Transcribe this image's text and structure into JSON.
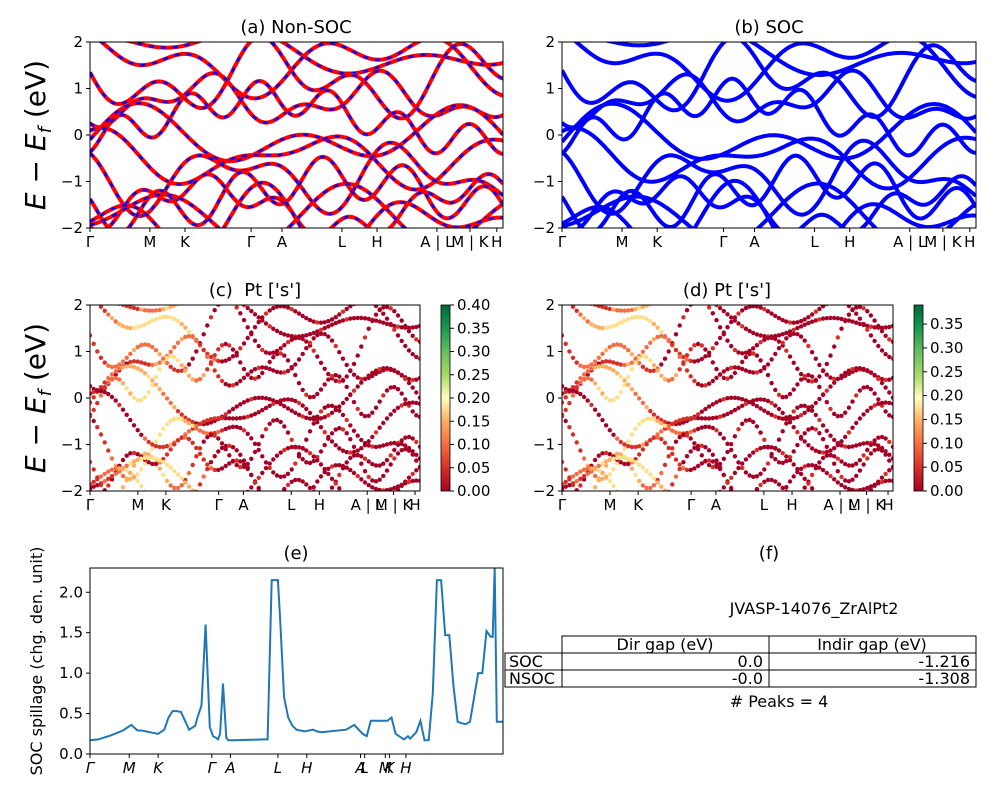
{
  "chart_data": [
    {
      "id": "a",
      "type": "line",
      "title": "(a) Non-SOC",
      "ylabel": "E − E_f (eV)",
      "ylim": [
        -2,
        2
      ],
      "yticks": [
        "2",
        "1",
        "0",
        "−1",
        "−2"
      ],
      "xticks": [
        "Γ",
        "M",
        "K",
        "Γ",
        "A",
        "L",
        "H",
        "A | L",
        "M | K",
        "H"
      ],
      "series": [
        {
          "color": "#ff0000",
          "style": "solid"
        },
        {
          "color": "#0000ff",
          "style": "dashed"
        }
      ]
    },
    {
      "id": "b",
      "type": "line",
      "title": "(b) SOC",
      "ylim": [
        -2,
        2
      ],
      "yticks": [
        "2",
        "1",
        "0",
        "−1",
        "−2"
      ],
      "xticks": [
        "Γ",
        "M",
        "K",
        "Γ",
        "A",
        "L",
        "H",
        "A | L",
        "M | K",
        "H"
      ],
      "series": [
        {
          "color": "#0000ff",
          "style": "solid"
        }
      ]
    },
    {
      "id": "c",
      "type": "scatter",
      "title": "(c)  Pt ['s']",
      "ylabel": "E − E_f (eV)",
      "ylim": [
        -2,
        2
      ],
      "yticks": [
        "2",
        "1",
        "0",
        "−1",
        "−2"
      ],
      "xticks": [
        "Γ",
        "M",
        "K",
        "Γ",
        "A",
        "L",
        "H",
        "A | L",
        "M | K",
        "H"
      ],
      "colorbar": {
        "min": 0.0,
        "max": 0.4,
        "colormap": "RdYlGn",
        "ticks": [
          "0.40",
          "0.35",
          "0.30",
          "0.25",
          "0.20",
          "0.15",
          "0.10",
          "0.05",
          "0.00"
        ]
      }
    },
    {
      "id": "d",
      "type": "scatter",
      "title": "(d) Pt ['s']",
      "ylim": [
        -2,
        2
      ],
      "yticks": [
        "2",
        "1",
        "0",
        "−1",
        "−2"
      ],
      "xticks": [
        "Γ",
        "M",
        "K",
        "Γ",
        "A",
        "L",
        "H",
        "A | L",
        "M | K",
        "H"
      ],
      "colorbar": {
        "min": 0.0,
        "max": 0.39,
        "colormap": "RdYlGn",
        "ticks": [
          "0.35",
          "0.30",
          "0.25",
          "0.20",
          "0.15",
          "0.10",
          "0.05",
          "0.00"
        ]
      }
    },
    {
      "id": "e",
      "type": "line",
      "title": "(e)",
      "ylabel": "SOC spillage (chg. den. unit)",
      "ylim": [
        0,
        2.3
      ],
      "yticks": [
        "2.0",
        "1.5",
        "1.0",
        "0.5",
        "0.0"
      ],
      "xticks": [
        "Γ",
        "M",
        "K",
        "Γ",
        "A",
        "L",
        "H",
        "A",
        "L",
        "M",
        "K",
        "H"
      ],
      "color": "#1f77b4",
      "x": [
        0.0,
        0.02,
        0.05,
        0.08,
        0.1,
        0.115,
        0.125,
        0.145,
        0.165,
        0.18,
        0.19,
        0.2,
        0.21,
        0.22,
        0.24,
        0.255,
        0.26,
        0.27,
        0.28,
        0.29,
        0.298,
        0.305,
        0.31,
        0.315,
        0.322,
        0.33,
        0.335,
        0.34,
        0.345,
        0.35,
        0.42,
        0.43,
        0.44,
        0.455,
        0.46,
        0.47,
        0.48,
        0.49,
        0.5,
        0.52,
        0.54,
        0.55,
        0.56,
        0.58,
        0.62,
        0.64,
        0.66,
        0.67,
        0.68,
        0.7,
        0.72,
        0.73,
        0.74,
        0.76,
        0.77,
        0.775,
        0.79,
        0.8,
        0.81,
        0.82,
        0.83,
        0.84,
        0.85,
        0.86,
        0.87,
        0.88,
        0.89,
        0.9,
        0.91,
        0.92,
        0.93,
        0.94,
        0.95,
        0.96,
        0.97,
        0.975,
        0.98,
        0.985,
        1.0
      ],
      "values": [
        0.17,
        0.18,
        0.23,
        0.29,
        0.36,
        0.29,
        0.29,
        0.27,
        0.25,
        0.3,
        0.45,
        0.53,
        0.53,
        0.52,
        0.3,
        0.35,
        0.45,
        0.6,
        1.6,
        0.33,
        0.22,
        0.2,
        0.18,
        0.25,
        0.87,
        0.2,
        0.17,
        0.17,
        0.17,
        0.17,
        0.18,
        0.18,
        2.15,
        2.15,
        1.7,
        0.7,
        0.45,
        0.35,
        0.3,
        0.28,
        0.3,
        0.28,
        0.27,
        0.28,
        0.3,
        0.36,
        0.25,
        0.22,
        0.41,
        0.41,
        0.41,
        0.45,
        0.25,
        0.18,
        0.22,
        0.19,
        0.27,
        0.41,
        0.17,
        0.17,
        0.75,
        2.15,
        2.15,
        1.47,
        1.47,
        0.85,
        0.4,
        0.38,
        0.37,
        0.4,
        0.7,
        1.0,
        1.0,
        1.52,
        1.45,
        1.45,
        2.3,
        0.4,
        0.4
      ]
    },
    {
      "id": "f",
      "type": "table",
      "title": "(f)",
      "subtitle": "JVASP-14076_ZrAlPt2",
      "columns": [
        "Dir gap (eV)",
        "Indir gap (eV)"
      ],
      "rows": [
        {
          "label": "SOC",
          "values": [
            "0.0",
            "-1.216"
          ]
        },
        {
          "label": "NSOC",
          "values": [
            "-0.0",
            "-1.308"
          ]
        }
      ],
      "footer": "# Peaks = 4"
    }
  ]
}
